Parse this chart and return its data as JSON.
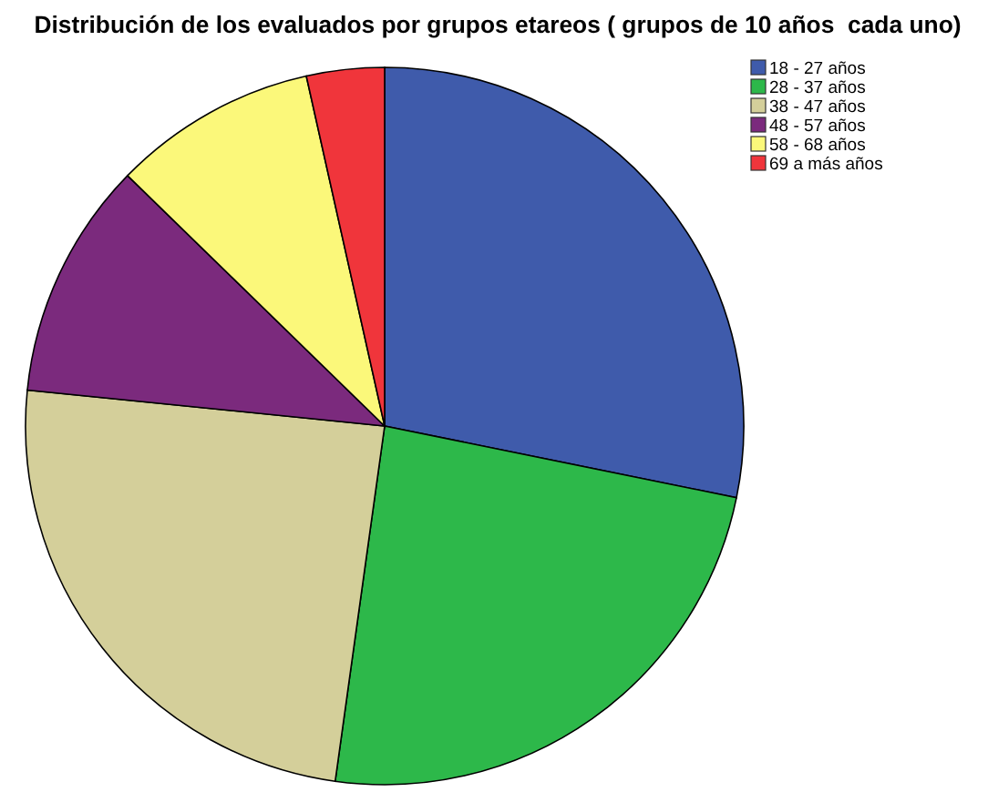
{
  "chart_data": {
    "type": "pie",
    "title": "Distribución de los evaluados por grupos etareos ( grupos de 10 años  cada uno)",
    "categories": [
      "18 - 27 años",
      "28 - 37 años",
      "38 - 47 años",
      "48 - 57 años",
      "58 - 68 años",
      "69 a más años"
    ],
    "values": [
      28.2,
      24,
      24.4,
      10.7,
      9.2,
      3.5
    ],
    "colors": [
      "#3f5bab",
      "#2db84a",
      "#d4cf9a",
      "#7b2a7d",
      "#fbf87a",
      "#f0353b"
    ],
    "legend": "top right"
  }
}
